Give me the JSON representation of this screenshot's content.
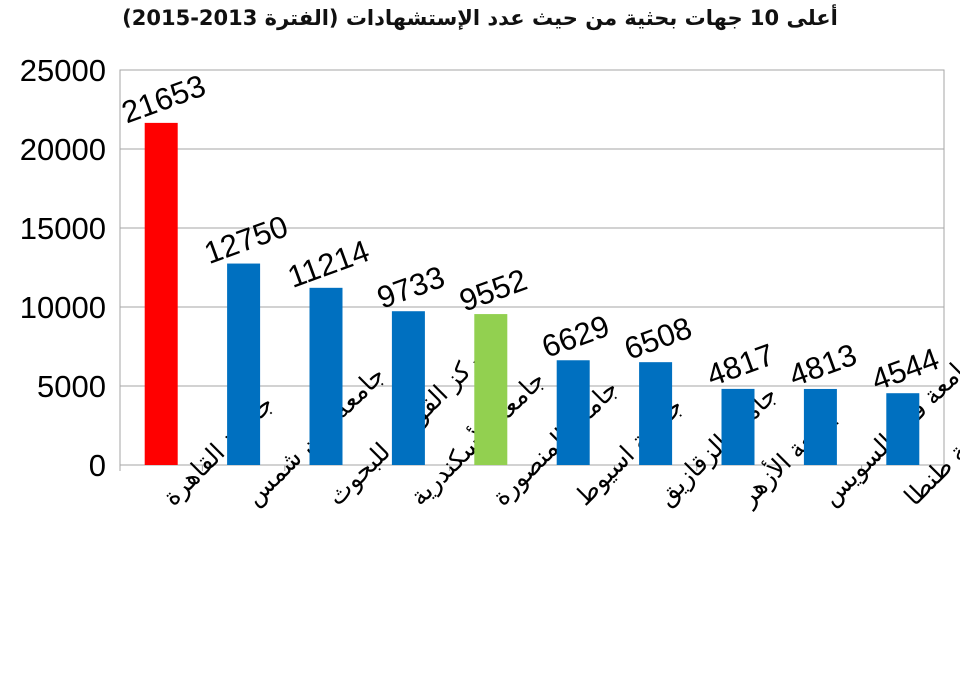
{
  "chart_data": {
    "type": "bar",
    "title": "أعلى 10 جهات بحثية من حيث عدد الإستشهادات (الفترة 2013-2015)",
    "xlabel": "",
    "ylabel": "",
    "ylim": [
      0,
      25000
    ],
    "yticks": [
      0,
      5000,
      10000,
      15000,
      20000,
      25000
    ],
    "grid": true,
    "legend": "none",
    "categories": [
      "جامعة القاهرة",
      "جامعة عين شمس",
      "المركز القومى للبحوث",
      "جامعة الأسكندرية",
      "جامعة المنصورة",
      "جامعة اسيوط",
      "جامعة الزقازيق",
      "جامعة الأزهر",
      "جامعة قناة السويس",
      "جامعة طنطا"
    ],
    "values": [
      21653,
      12750,
      11214,
      9733,
      9552,
      6629,
      6508,
      4817,
      4813,
      4544
    ],
    "bar_colors": [
      "#ff0000",
      "#0070c0",
      "#0070c0",
      "#0070c0",
      "#92d050",
      "#0070c0",
      "#0070c0",
      "#0070c0",
      "#0070c0",
      "#0070c0"
    ],
    "gridline_color": "#a6a6a6"
  }
}
